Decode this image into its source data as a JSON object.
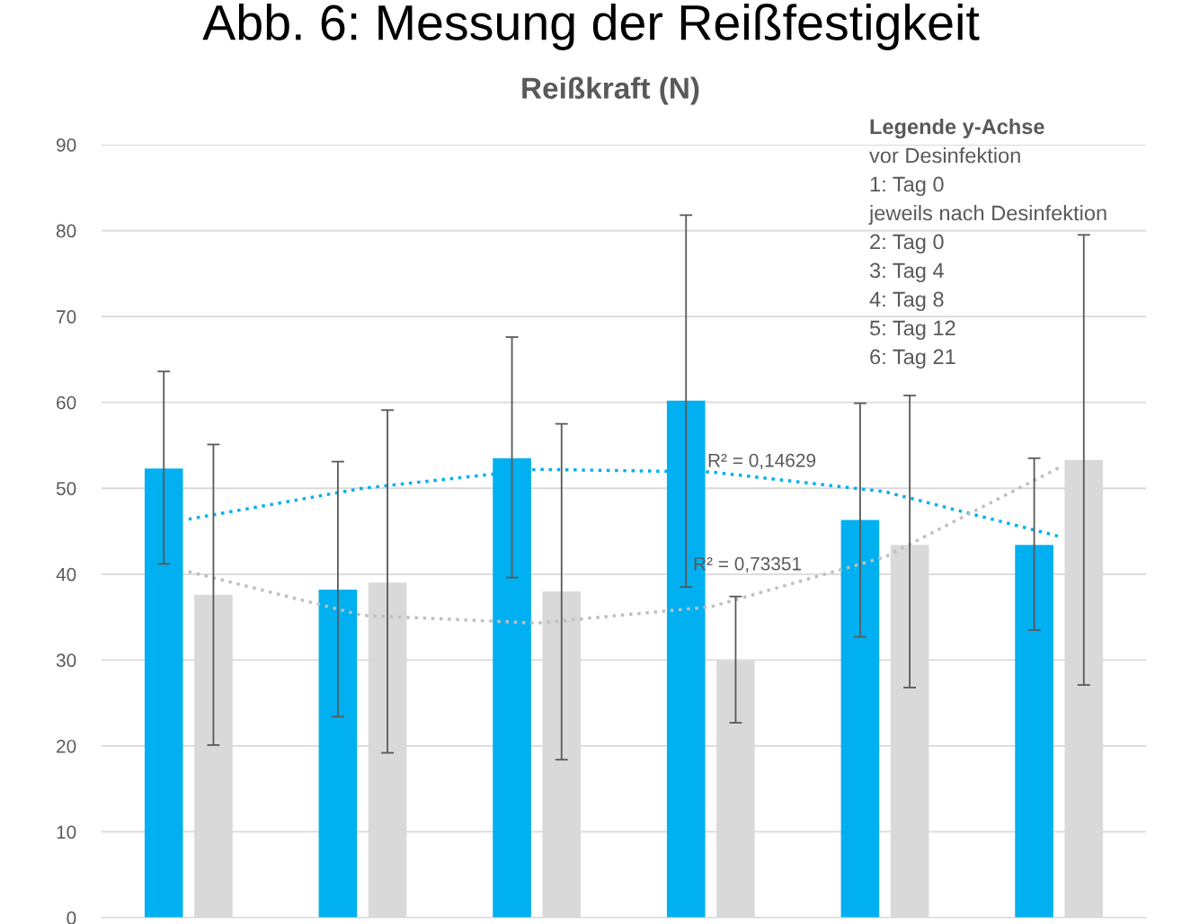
{
  "chart_data": {
    "type": "bar",
    "title": "Abb. 6: Messung der Reißfestigkeit",
    "subtitle": "Reißkraft (N)",
    "categories": [
      null,
      null,
      null,
      null,
      null,
      null
    ],
    "series": [
      {
        "color": "#00b0f0",
        "values": [
          52.3,
          38.2,
          53.5,
          60.2,
          46.3,
          43.4
        ],
        "errors": [
          [
            41.2,
            63.6
          ],
          [
            23.4,
            53.1
          ],
          [
            39.6,
            67.6
          ],
          [
            38.5,
            81.8
          ],
          [
            32.7,
            59.9
          ],
          [
            33.5,
            53.5
          ]
        ]
      },
      {
        "color": "#d9d9d9",
        "values": [
          37.6,
          39.0,
          38.0,
          29.9,
          43.4,
          53.3
        ],
        "errors": [
          [
            20.1,
            55.1
          ],
          [
            19.2,
            59.1
          ],
          [
            18.4,
            57.5
          ],
          [
            22.7,
            37.4
          ],
          [
            26.8,
            60.8
          ],
          [
            27.1,
            79.5
          ]
        ]
      },
      {
        "type": "line",
        "color": "#00b0f0",
        "line_style": "dotted",
        "values": [
          46.4,
          50.0,
          52.2,
          51.9,
          49.6,
          44.4
        ]
      },
      {
        "type": "line",
        "color": "#bfbfbf",
        "line_style": "dotted",
        "values": [
          40.3,
          35.2,
          34.3,
          36.2,
          42.0,
          52.4
        ]
      }
    ],
    "ylim": [
      0,
      90
    ],
    "yticks": [
      0,
      10,
      20,
      30,
      40,
      50,
      60,
      70,
      80,
      90
    ],
    "grid": "y",
    "legend": false,
    "tick_labels": "y",
    "annotations": [
      "R² = 0,14629",
      "R² = 0,73351",
      "Legende y-Achse",
      "vor Desinfektion",
      "1: Tag 0",
      "jeweils nach Desinfektion",
      "2: Tag 0",
      "3: Tag 4",
      "4: Tag 8",
      "5: Tag 12",
      "6: Tag 21"
    ]
  }
}
